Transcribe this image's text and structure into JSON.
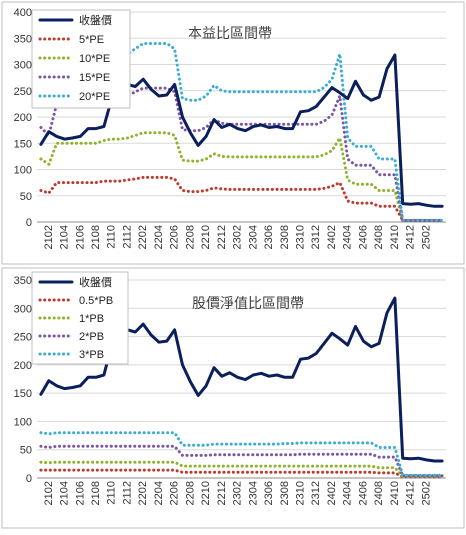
{
  "colors": {
    "price": "#0b1f5c",
    "s1": "#c0392b",
    "s2": "#8fb32a",
    "s3": "#7b55a6",
    "s4": "#3aaed0",
    "grid": "#d9d9d9",
    "frame": "#bfbfbf"
  },
  "chart_data": [
    {
      "type": "line",
      "title": "本益比區間帶",
      "ylim": [
        0,
        400
      ],
      "yticks": [
        0,
        50,
        100,
        150,
        200,
        250,
        300,
        350,
        400
      ],
      "grid": true,
      "legend": "top-left",
      "x_tick_labels": [
        "2102",
        "2104",
        "2106",
        "2108",
        "2110",
        "2112",
        "2202",
        "2204",
        "2206",
        "2208",
        "2210",
        "2212",
        "2302",
        "2304",
        "2306",
        "2308",
        "2310",
        "2312",
        "2402",
        "2404",
        "2406",
        "2408",
        "2410",
        "2412",
        "2502"
      ],
      "series": [
        {
          "name": "收盤價",
          "style": "solid",
          "color_key": "price",
          "values": [
            148,
            172,
            163,
            158,
            160,
            163,
            178,
            178,
            182,
            235,
            285,
            262,
            258,
            272,
            253,
            240,
            242,
            262,
            200,
            170,
            146,
            163,
            195,
            180,
            186,
            178,
            174,
            182,
            185,
            180,
            182,
            178,
            178,
            210,
            212,
            220,
            238,
            256,
            246,
            235,
            268,
            242,
            232,
            238,
            292,
            318,
            35,
            34,
            35,
            32,
            30,
            30
          ]
        },
        {
          "name": "5*PE",
          "style": "dotted",
          "color_key": "s1",
          "values": [
            60,
            55,
            75,
            75,
            75,
            75,
            75,
            75,
            78,
            78,
            78,
            80,
            82,
            85,
            85,
            85,
            85,
            82,
            60,
            58,
            58,
            60,
            65,
            63,
            62,
            62,
            62,
            62,
            62,
            62,
            62,
            62,
            62,
            62,
            62,
            62,
            64,
            68,
            75,
            40,
            36,
            36,
            36,
            30,
            30,
            30,
            3,
            3,
            3,
            3,
            3,
            3
          ]
        },
        {
          "name": "10*PE",
          "style": "dotted",
          "color_key": "s2",
          "values": [
            120,
            110,
            150,
            150,
            150,
            150,
            150,
            150,
            155,
            158,
            158,
            160,
            165,
            170,
            170,
            170,
            170,
            165,
            118,
            116,
            116,
            120,
            130,
            125,
            124,
            124,
            124,
            124,
            124,
            124,
            124,
            124,
            124,
            124,
            124,
            124,
            128,
            136,
            160,
            80,
            72,
            72,
            72,
            60,
            60,
            60,
            3,
            3,
            3,
            3,
            3,
            3
          ]
        },
        {
          "name": "15*PE",
          "style": "dotted",
          "color_key": "s3",
          "values": [
            180,
            165,
            225,
            225,
            225,
            225,
            225,
            225,
            232,
            236,
            237,
            240,
            248,
            255,
            255,
            255,
            255,
            248,
            176,
            174,
            174,
            180,
            195,
            188,
            186,
            186,
            186,
            186,
            186,
            186,
            186,
            186,
            186,
            186,
            186,
            186,
            192,
            204,
            240,
            120,
            108,
            108,
            108,
            90,
            90,
            90,
            3,
            3,
            3,
            3,
            3,
            3
          ]
        },
        {
          "name": "20*PE",
          "style": "dotted",
          "color_key": "s4",
          "values": [
            240,
            220,
            300,
            300,
            300,
            300,
            300,
            300,
            310,
            315,
            316,
            320,
            330,
            340,
            340,
            340,
            340,
            330,
            235,
            232,
            232,
            240,
            260,
            250,
            248,
            248,
            248,
            248,
            248,
            248,
            248,
            248,
            248,
            248,
            248,
            248,
            256,
            272,
            320,
            160,
            144,
            144,
            144,
            120,
            120,
            120,
            3,
            3,
            3,
            3,
            3,
            3
          ]
        }
      ]
    },
    {
      "type": "line",
      "title": "股價淨值比區間帶",
      "ylim": [
        0,
        350
      ],
      "yticks": [
        0,
        50,
        100,
        150,
        200,
        250,
        300,
        350
      ],
      "grid": true,
      "legend": "top-left",
      "x_tick_labels": [
        "2102",
        "2104",
        "2106",
        "2108",
        "2110",
        "2112",
        "2202",
        "2204",
        "2206",
        "2208",
        "2210",
        "2212",
        "2302",
        "2304",
        "2306",
        "2308",
        "2310",
        "2312",
        "2402",
        "2404",
        "2406",
        "2408",
        "2410",
        "2412",
        "2502"
      ],
      "series": [
        {
          "name": "收盤價",
          "style": "solid",
          "color_key": "price",
          "values": [
            148,
            172,
            163,
            158,
            160,
            163,
            178,
            178,
            182,
            235,
            285,
            262,
            258,
            272,
            253,
            240,
            242,
            262,
            200,
            170,
            146,
            163,
            195,
            180,
            186,
            178,
            174,
            182,
            185,
            180,
            182,
            178,
            178,
            210,
            212,
            220,
            238,
            256,
            246,
            235,
            268,
            242,
            232,
            238,
            292,
            318,
            35,
            34,
            35,
            32,
            30,
            30
          ]
        },
        {
          "name": "0.5*PB",
          "style": "dotted",
          "color_key": "s1",
          "values": [
            14,
            14,
            14,
            14,
            14,
            14,
            14,
            14,
            14,
            14,
            14,
            14,
            14,
            14,
            14,
            14,
            14,
            14,
            10,
            10,
            10,
            10,
            10,
            10,
            10,
            10,
            10,
            10,
            10,
            10,
            10,
            10,
            10,
            10,
            10,
            10,
            10,
            10,
            10,
            10,
            10,
            10,
            10,
            9,
            9,
            9,
            2,
            2,
            2,
            2,
            2,
            2
          ]
        },
        {
          "name": "1*PB",
          "style": "dotted",
          "color_key": "s2",
          "values": [
            28,
            27,
            28,
            28,
            28,
            28,
            28,
            28,
            28,
            28,
            28,
            28,
            28,
            28,
            28,
            28,
            28,
            28,
            21,
            21,
            21,
            21,
            21,
            21,
            21,
            21,
            21,
            21,
            21,
            21,
            21,
            21,
            21,
            21,
            21,
            21,
            21,
            21,
            21,
            21,
            21,
            21,
            21,
            18,
            18,
            18,
            3,
            3,
            3,
            3,
            3,
            3
          ]
        },
        {
          "name": "2*PB",
          "style": "dotted",
          "color_key": "s3",
          "values": [
            56,
            54,
            56,
            56,
            56,
            56,
            56,
            56,
            56,
            56,
            56,
            56,
            56,
            56,
            56,
            56,
            56,
            56,
            40,
            40,
            40,
            40,
            41,
            41,
            41,
            41,
            41,
            41,
            41,
            41,
            41,
            41,
            41,
            42,
            42,
            42,
            42,
            42,
            42,
            42,
            42,
            42,
            42,
            37,
            37,
            37,
            4,
            4,
            4,
            4,
            4,
            4
          ]
        },
        {
          "name": "3*PB",
          "style": "dotted",
          "color_key": "s4",
          "values": [
            80,
            78,
            80,
            80,
            80,
            80,
            80,
            80,
            80,
            80,
            80,
            80,
            80,
            80,
            80,
            80,
            80,
            80,
            58,
            58,
            58,
            58,
            60,
            60,
            60,
            60,
            60,
            60,
            60,
            60,
            60,
            61,
            61,
            62,
            62,
            62,
            62,
            62,
            62,
            62,
            62,
            62,
            62,
            54,
            54,
            54,
            5,
            5,
            5,
            5,
            5,
            5
          ]
        }
      ]
    }
  ]
}
